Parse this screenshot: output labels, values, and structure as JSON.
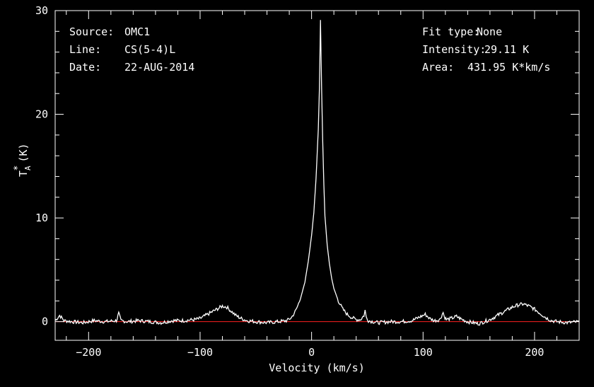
{
  "info": {
    "source_label": "Source:",
    "source_value": "OMC1",
    "line_label": "Line:",
    "line_value": "CS(5-4)L",
    "date_label": "Date:",
    "date_value": "22-AUG-2014",
    "fit_label": "Fit type:",
    "fit_value": "None",
    "intensity_label": "Intensity:",
    "intensity_value": "29.11 K",
    "area_label": "Area:",
    "area_value": "431.95 K*km/s"
  },
  "colors": {
    "background": "#000000",
    "spectrum": "#ffffff",
    "baseline": "#ff2020",
    "axes": "#ffffff"
  },
  "chart_data": {
    "type": "line",
    "xlabel": "Velocity (km/s)",
    "ylabel_main": "T",
    "ylabel_sup": "*",
    "ylabel_sub": "A",
    "ylabel_unit": "(K)",
    "xlim": [
      -230,
      240
    ],
    "ylim": [
      -1.8,
      30
    ],
    "xticks": [
      -200,
      -100,
      0,
      100,
      200
    ],
    "xtick_labels": [
      "−200",
      "−100",
      "0",
      "100",
      "200"
    ],
    "yticks": [
      0,
      10,
      20,
      30
    ],
    "ytick_labels": [
      "0",
      "10",
      "20",
      "30"
    ],
    "grid": false,
    "baseline_y": 0,
    "series": [
      {
        "x": [
          -230,
          -226,
          -222,
          -215,
          -205,
          -195,
          -185,
          -175,
          -173,
          -171,
          -165,
          -155,
          -145,
          -135,
          -125,
          -115,
          -105,
          -100,
          -95,
          -90,
          -85,
          -80,
          -76,
          -72,
          -68,
          -63,
          -58,
          -50,
          -40,
          -30,
          -22,
          -18,
          -14,
          -10,
          -6,
          -3,
          0,
          2,
          4,
          6,
          7,
          8,
          9,
          10,
          11,
          12,
          14,
          16,
          18,
          20,
          24,
          28,
          32,
          36,
          40,
          44,
          47,
          48,
          49,
          51,
          55,
          60,
          70,
          80,
          90,
          98,
          102,
          106,
          110,
          115,
          118,
          119,
          121,
          125,
          130,
          135,
          140,
          145,
          150,
          155,
          160,
          165,
          170,
          175,
          180,
          185,
          190,
          195,
          200,
          205,
          210,
          215,
          220,
          230,
          240
        ],
        "y": [
          0.1,
          0.6,
          0.1,
          0.0,
          -0.1,
          0.1,
          0.0,
          0.1,
          0.8,
          0.1,
          0.0,
          0.1,
          0.0,
          -0.1,
          0.1,
          0.1,
          0.2,
          0.3,
          0.6,
          0.9,
          1.2,
          1.5,
          1.4,
          1.0,
          0.6,
          0.3,
          0.1,
          0.0,
          -0.1,
          0.0,
          0.1,
          0.4,
          1.1,
          2.2,
          3.8,
          5.8,
          8.3,
          10.5,
          13.8,
          18.5,
          22.5,
          29.1,
          22.5,
          17.3,
          13.2,
          10.2,
          7.4,
          5.6,
          4.2,
          3.2,
          2.0,
          1.2,
          0.7,
          0.4,
          0.2,
          0.2,
          0.6,
          1.1,
          0.4,
          0.1,
          0.0,
          -0.1,
          0.0,
          0.0,
          0.1,
          0.5,
          0.7,
          0.3,
          0.1,
          0.2,
          0.9,
          0.5,
          0.2,
          0.3,
          0.5,
          0.2,
          0.0,
          -0.1,
          -0.2,
          0.0,
          0.2,
          0.5,
          0.8,
          1.1,
          1.4,
          1.6,
          1.7,
          1.5,
          1.2,
          0.8,
          0.4,
          0.1,
          0.0,
          -0.1,
          0.0
        ]
      }
    ]
  }
}
